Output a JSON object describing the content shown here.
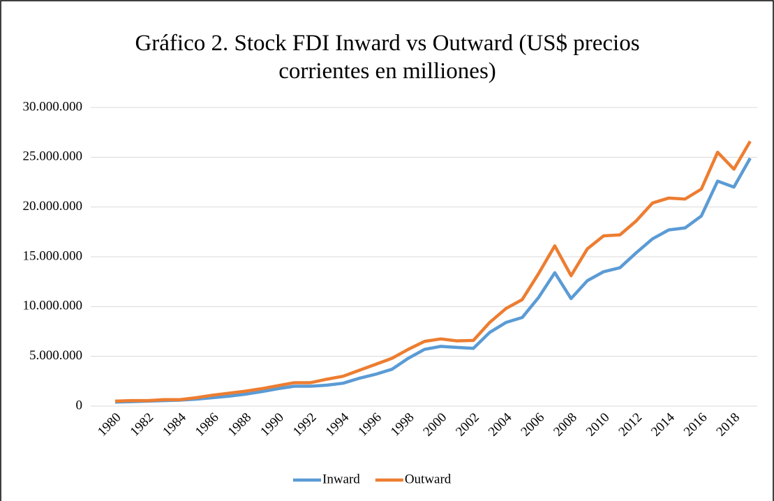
{
  "chart_data": {
    "type": "line",
    "title": "Gráfico 2. Stock FDI Inward vs Outward (US$ precios corrientes en milliones)",
    "categories": [
      "1980",
      null,
      "1982",
      null,
      "1984",
      null,
      "1986",
      null,
      "1988",
      null,
      "1990",
      null,
      "1992",
      null,
      "1994",
      null,
      "1996",
      null,
      "1998",
      null,
      "2000",
      null,
      "2002",
      null,
      "2004",
      null,
      "2006",
      null,
      "2008",
      null,
      "2010",
      null,
      "2012",
      null,
      "2014",
      null,
      "2016",
      null,
      "2018",
      null
    ],
    "series": [
      {
        "name": "Inward",
        "color": "#5b9bd5",
        "values": [
          400000,
          450000,
          500000,
          550000,
          600000,
          700000,
          850000,
          1000000,
          1200000,
          1450000,
          1750000,
          2000000,
          2000000,
          2100000,
          2300000,
          2800000,
          3200000,
          3700000,
          4800000,
          5700000,
          6000000,
          5900000,
          5800000,
          7400000,
          8400000,
          8900000,
          10900000,
          13400000,
          10800000,
          12600000,
          13500000,
          13900000,
          15400000,
          16800000,
          17700000,
          17900000,
          19100000,
          22600000,
          22000000,
          24900000
        ]
      },
      {
        "name": "Outward",
        "color": "#ed7d31",
        "values": [
          500000,
          550000,
          550000,
          650000,
          650000,
          850000,
          1100000,
          1300000,
          1500000,
          1750000,
          2050000,
          2350000,
          2350000,
          2700000,
          3000000,
          3600000,
          4200000,
          4800000,
          5700000,
          6500000,
          6750000,
          6550000,
          6600000,
          8400000,
          9800000,
          10700000,
          13300000,
          16100000,
          13100000,
          15800000,
          17100000,
          17200000,
          18600000,
          20400000,
          20900000,
          20800000,
          21800000,
          25500000,
          23800000,
          26600000
        ]
      }
    ],
    "ylim": [
      0,
      30000000
    ],
    "yticks": [
      0,
      {
        "value": 5000000,
        "label": "5.000.000"
      },
      {
        "value": 10000000,
        "label": "10.000.000"
      },
      {
        "value": 15000000,
        "label": "15.000.000"
      },
      {
        "value": 20000000,
        "label": "20.000.000"
      },
      {
        "value": 25000000,
        "label": "25.000.000"
      },
      {
        "value": 30000000,
        "label": "30.000.000"
      }
    ],
    "grid": true,
    "legend": "bottom"
  }
}
